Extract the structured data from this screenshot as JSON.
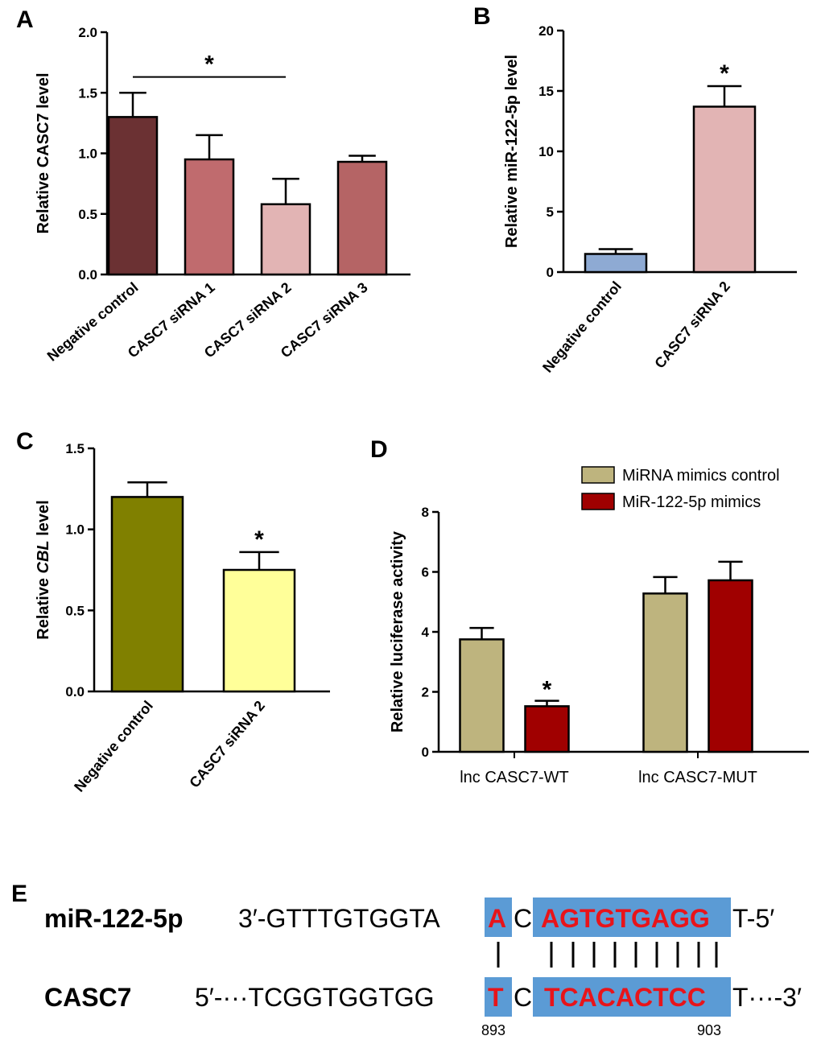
{
  "panels": {
    "A": "A",
    "B": "B",
    "C": "C",
    "D": "D",
    "E": "E"
  },
  "chart_data": [
    {
      "id": "A",
      "type": "bar",
      "ylabel": "Relative CASC7 level",
      "ylim": [
        0,
        2.0
      ],
      "yticks": [
        "0.0",
        "0.5",
        "1.0",
        "1.5",
        "2.0"
      ],
      "categories": [
        "Negative control",
        "CASC7 siRNA 1",
        "CASC7 siRNA 2",
        "CASC7 siRNA 3"
      ],
      "values": [
        1.3,
        0.95,
        0.58,
        0.93
      ],
      "errors": [
        0.2,
        0.2,
        0.21,
        0.05
      ],
      "colors": [
        "#6b3133",
        "#c06b6e",
        "#e2b4b4",
        "#b56465"
      ],
      "significance": {
        "label": "*",
        "between": [
          "Negative control",
          "CASC7 siRNA 2"
        ],
        "level": 1.63
      }
    },
    {
      "id": "B",
      "type": "bar",
      "ylabel": "Relative miR-122-5p level",
      "ylim": [
        0,
        20
      ],
      "yticks": [
        "0",
        "5",
        "10",
        "15",
        "20"
      ],
      "categories": [
        "Negative control",
        "CASC7 siRNA 2"
      ],
      "values": [
        1.5,
        13.7
      ],
      "errors": [
        0.4,
        1.7
      ],
      "colors": [
        "#8eaad3",
        "#e2b4b4"
      ],
      "stars": [
        "",
        "*"
      ]
    },
    {
      "id": "C",
      "type": "bar",
      "ylabel_prefix": "Relative ",
      "ylabel_italic": "CBL",
      "ylabel_suffix": " level",
      "ylim": [
        0,
        1.5
      ],
      "yticks": [
        "0.0",
        "0.5",
        "1.0",
        "1.5"
      ],
      "categories": [
        "Negative control",
        "CASC7 siRNA 2"
      ],
      "values": [
        1.2,
        0.75
      ],
      "errors": [
        0.09,
        0.11
      ],
      "colors": [
        "#808000",
        "#ffff99"
      ],
      "stars": [
        "",
        "*"
      ]
    },
    {
      "id": "D",
      "type": "bar",
      "ylabel": "Relative luciferase activity",
      "ylim": [
        0,
        8
      ],
      "yticks": [
        "0",
        "2",
        "4",
        "6",
        "8"
      ],
      "categories": [
        "lnc CASC7-WT",
        "lnc CASC7-MUT"
      ],
      "series": [
        {
          "name": "MiRNA mimics control",
          "color": "#beb47e",
          "values": [
            3.75,
            5.28
          ],
          "errors": [
            0.38,
            0.55
          ]
        },
        {
          "name": "MiR-122-5p mimics",
          "color": "#a00000",
          "values": [
            1.52,
            5.72
          ],
          "errors": [
            0.18,
            0.62
          ]
        }
      ],
      "stars": [
        [
          "",
          "*"
        ],
        [
          "",
          ""
        ]
      ]
    }
  ],
  "panelE": {
    "top": {
      "name": "miR-122-5p",
      "prefix": "3′-GTTTGTGGTA",
      "site1": "A",
      "mid": "C",
      "site2": "AGTGTGAGG",
      "suffix": "T-5′"
    },
    "bottom": {
      "name": "CASC7",
      "prefix": "5′-···TCGGTGGTGG",
      "site1": "T",
      "mid": "C",
      "site2": "TCACACTCC",
      "suffix": "T···-3′"
    },
    "pos_start": "893",
    "pos_end": "903",
    "highlight_color": "#5b9bd5"
  }
}
